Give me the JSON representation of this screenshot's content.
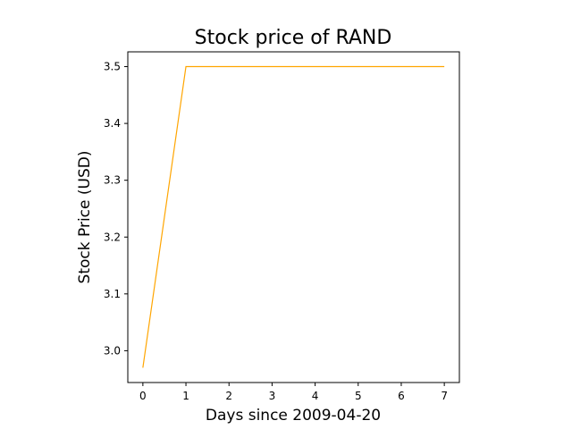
{
  "chart_data": {
    "type": "line",
    "title": "Stock price of RAND",
    "xlabel": "Days since 2009-04-20",
    "ylabel": "Stock Price (USD)",
    "x": [
      0,
      1,
      2,
      3,
      4,
      5,
      6,
      7
    ],
    "series": [
      {
        "values": [
          2.97,
          3.5,
          3.5,
          3.5,
          3.5,
          3.5,
          3.5,
          3.5
        ],
        "color": "#ffa500"
      }
    ],
    "xlim": [
      -0.35,
      7.35
    ],
    "ylim": [
      2.944,
      3.526
    ],
    "xticks": [
      0,
      1,
      2,
      3,
      4,
      5,
      6,
      7
    ],
    "xtick_labels": [
      "0",
      "1",
      "2",
      "3",
      "4",
      "5",
      "6",
      "7"
    ],
    "yticks": [
      3.0,
      3.1,
      3.2,
      3.3,
      3.4,
      3.5
    ],
    "ytick_labels": [
      "3.0",
      "3.1",
      "3.2",
      "3.3",
      "3.4",
      "3.5"
    ],
    "grid": false,
    "legend": false
  }
}
